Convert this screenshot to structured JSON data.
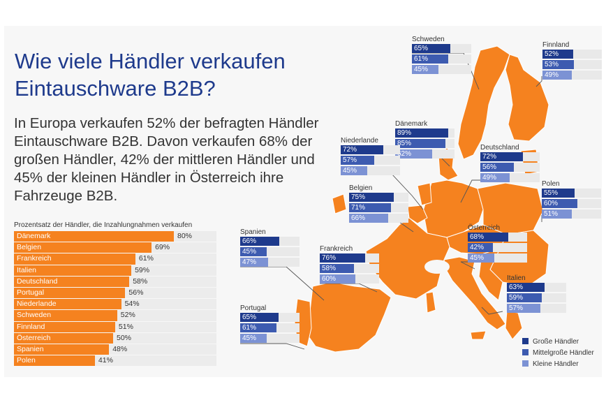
{
  "title": "Wie viele Händler verkaufen Eintauschware B2B?",
  "description": "In Europa verkaufen 52% der befragten Händler Eintauschware B2B. Davon verkaufen 68% der großen Händler, 42% der mittleren Händler und 45% der kleinen Händler in Österreich ihre Fahrzeuge B2B.",
  "colors": {
    "map": "#f5821f",
    "bar": "#f5821f",
    "gross": "#1e3a8c",
    "mittel": "#3d5bb0",
    "klein": "#7c92d4"
  },
  "chart_data": [
    {
      "type": "bar",
      "orientation": "horizontal",
      "title": "Prozentsatz der Händler, die Inzahlungnahmen verkaufen",
      "categories": [
        "Dänemark",
        "Belgien",
        "Frankreich",
        "Italien",
        "Deutschland",
        "Portugal",
        "Niederlande",
        "Schweden",
        "Finnland",
        "Österreich",
        "Spanien",
        "Polen"
      ],
      "values": [
        80,
        69,
        61,
        59,
        58,
        56,
        54,
        52,
        51,
        50,
        48,
        41
      ],
      "value_labels": [
        "80%",
        "69%",
        "61%",
        "59%",
        "58%",
        "56%",
        "54%",
        "52%",
        "51%",
        "50%",
        "48%",
        "41%"
      ],
      "xlim": [
        0,
        100
      ]
    },
    {
      "type": "bar",
      "orientation": "horizontal",
      "legend": [
        "Große Händler",
        "Mittelgroße Händler",
        "Kleine Händler"
      ],
      "legend_position": "bottom-right",
      "countries": [
        {
          "name": "Schweden",
          "values": [
            65,
            61,
            45
          ],
          "labels": [
            "65%",
            "61%",
            "45%"
          ]
        },
        {
          "name": "Finnland",
          "values": [
            52,
            53,
            49
          ],
          "labels": [
            "52%",
            "53%",
            "49%"
          ]
        },
        {
          "name": "Dänemark",
          "values": [
            89,
            85,
            62
          ],
          "labels": [
            "89%",
            "85%",
            "62%"
          ]
        },
        {
          "name": "Niederlande",
          "values": [
            72,
            57,
            45
          ],
          "labels": [
            "72%",
            "57%",
            "45%"
          ]
        },
        {
          "name": "Deutschland",
          "values": [
            72,
            56,
            49
          ],
          "labels": [
            "72%",
            "56%",
            "49%"
          ]
        },
        {
          "name": "Belgien",
          "values": [
            75,
            71,
            66
          ],
          "labels": [
            "75%",
            "71%",
            "66%"
          ]
        },
        {
          "name": "Polen",
          "values": [
            55,
            60,
            51
          ],
          "labels": [
            "55%",
            "60%",
            "51%"
          ]
        },
        {
          "name": "Spanien",
          "values": [
            66,
            45,
            47
          ],
          "labels": [
            "66%",
            "45%",
            "47%"
          ]
        },
        {
          "name": "Österreich",
          "values": [
            68,
            42,
            45
          ],
          "labels": [
            "68%",
            "42%",
            "45%"
          ]
        },
        {
          "name": "Frankreich",
          "values": [
            76,
            58,
            60
          ],
          "labels": [
            "76%",
            "58%",
            "60%"
          ]
        },
        {
          "name": "Italien",
          "values": [
            63,
            59,
            57
          ],
          "labels": [
            "63%",
            "59%",
            "57%"
          ]
        },
        {
          "name": "Portugal",
          "values": [
            65,
            61,
            45
          ],
          "labels": [
            "65%",
            "61%",
            "45%"
          ]
        }
      ]
    }
  ]
}
